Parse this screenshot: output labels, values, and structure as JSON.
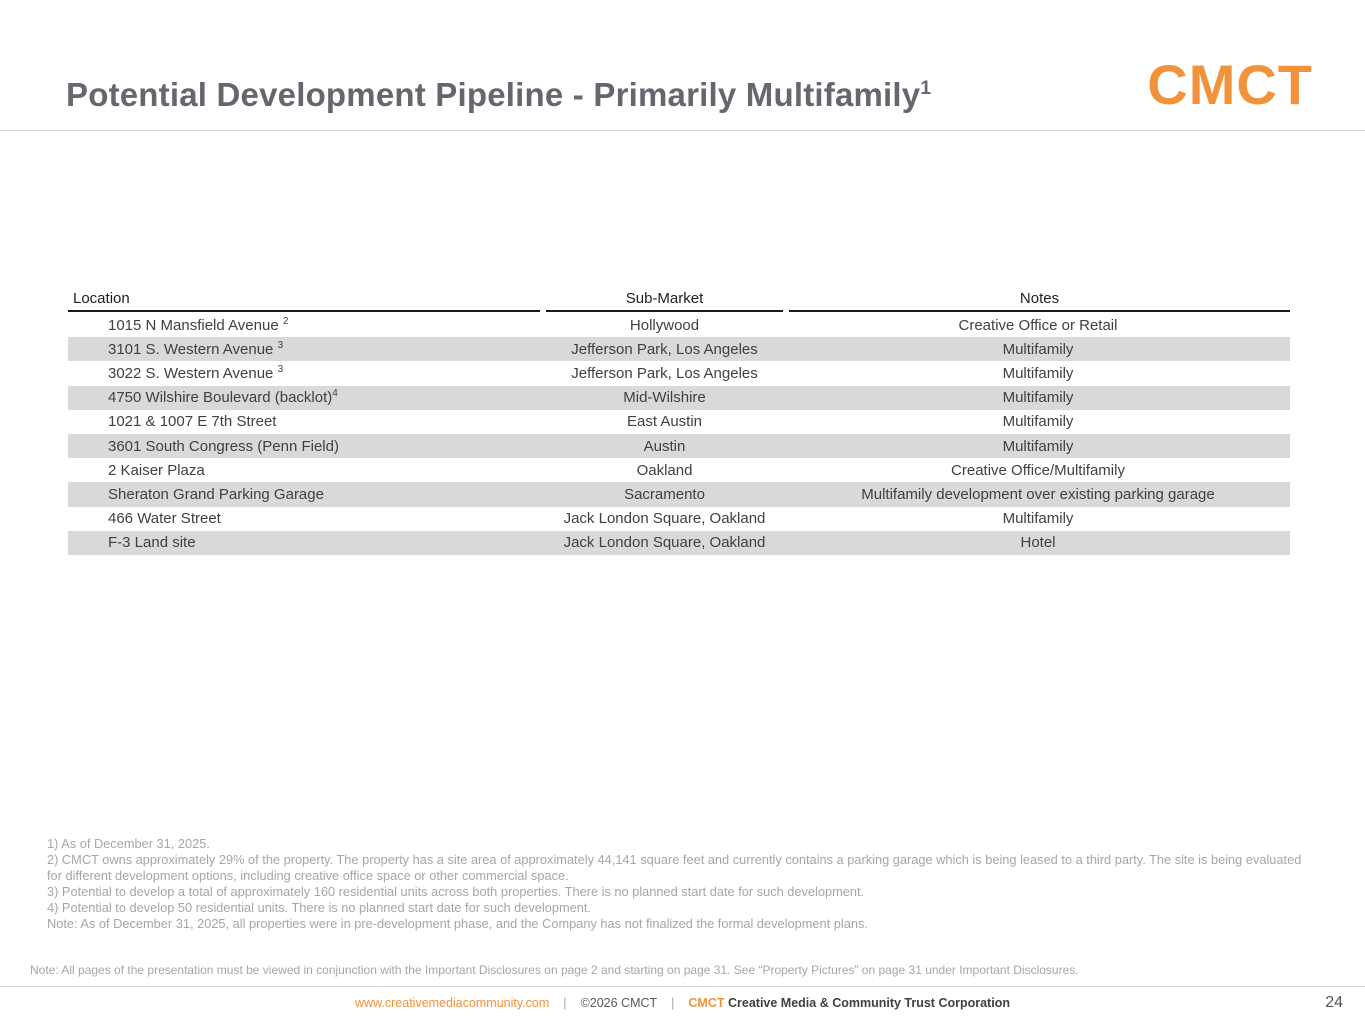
{
  "slide": {
    "title": "Potential Development Pipeline - Primarily Multifamily",
    "title_superscript": "1",
    "logo_text": "CMCT",
    "page_number": "24"
  },
  "table": {
    "columns": [
      "Location",
      "Sub-Market",
      "Notes"
    ],
    "rows": [
      {
        "location": "1015 N Mansfield Avenue ",
        "location_superscript": "2",
        "sub_market": "Hollywood",
        "notes": "Creative Office or Retail",
        "shaded": false
      },
      {
        "location": "3101 S. Western Avenue ",
        "location_superscript": "3",
        "sub_market": "Jefferson Park, Los Angeles",
        "notes": "Multifamily",
        "shaded": true
      },
      {
        "location": "3022 S. Western Avenue ",
        "location_superscript": "3",
        "sub_market": "Jefferson Park, Los Angeles",
        "notes": "Multifamily",
        "shaded": false
      },
      {
        "location": "4750 Wilshire Boulevard (backlot)",
        "location_superscript": "4",
        "sub_market": "Mid-Wilshire",
        "notes": "Multifamily",
        "shaded": true
      },
      {
        "location": "1021 & 1007 E 7th Street",
        "location_superscript": "",
        "sub_market": "East Austin",
        "notes": "Multifamily",
        "shaded": false
      },
      {
        "location": "3601 South Congress (Penn Field)",
        "location_superscript": "",
        "sub_market": "Austin",
        "notes": "Multifamily",
        "shaded": true
      },
      {
        "location": "2 Kaiser Plaza",
        "location_superscript": "",
        "sub_market": "Oakland",
        "notes": "Creative Office/Multifamily",
        "shaded": false
      },
      {
        "location": "Sheraton Grand Parking Garage",
        "location_superscript": "",
        "sub_market": "Sacramento",
        "notes": "Multifamily development over existing parking garage",
        "shaded": true
      },
      {
        "location": "466 Water Street",
        "location_superscript": "",
        "sub_market": "Jack London Square, Oakland",
        "notes": "Multifamily",
        "shaded": false
      },
      {
        "location": "F-3 Land site",
        "location_superscript": "",
        "sub_market": "Jack London Square, Oakland",
        "notes": "Hotel",
        "shaded": true
      }
    ]
  },
  "footnotes": [
    "1) As of December 31, 2025.",
    "2) CMCT owns approximately 29% of the property. The property has a site area of approximately 44,141 square feet and currently contains a parking garage which is being leased to a third party. The site is being evaluated for different development options, including creative office space or other commercial space.",
    "3) Potential to develop a total of approximately 160 residential units across both properties. There is no planned start date for such development.",
    "4) Potential to develop 50 residential units.  There is no planned start date for such development.",
    "Note: As of December 31, 2025, all properties  were in pre-development phase, and the Company has not finalized the formal development plans."
  ],
  "bottom_note": "Note: All pages of the presentation must be viewed in conjunction with the Important Disclosures on page 2 and starting on page 31. See “Property Pictures” on page 31 under Important Disclosures.",
  "footer": {
    "website": "www.creativemediacommunity.com",
    "separator": "|",
    "copyright": "©2026 CMCT",
    "brand": "CMCT",
    "company": "Creative Media & Community Trust Corporation"
  },
  "colors": {
    "accent_orange": "#F2933C",
    "row_shade": "#D9D9D9",
    "title_gray": "#66666E",
    "table_text": "#404040",
    "footnote_gray": "#A6A6A6"
  }
}
